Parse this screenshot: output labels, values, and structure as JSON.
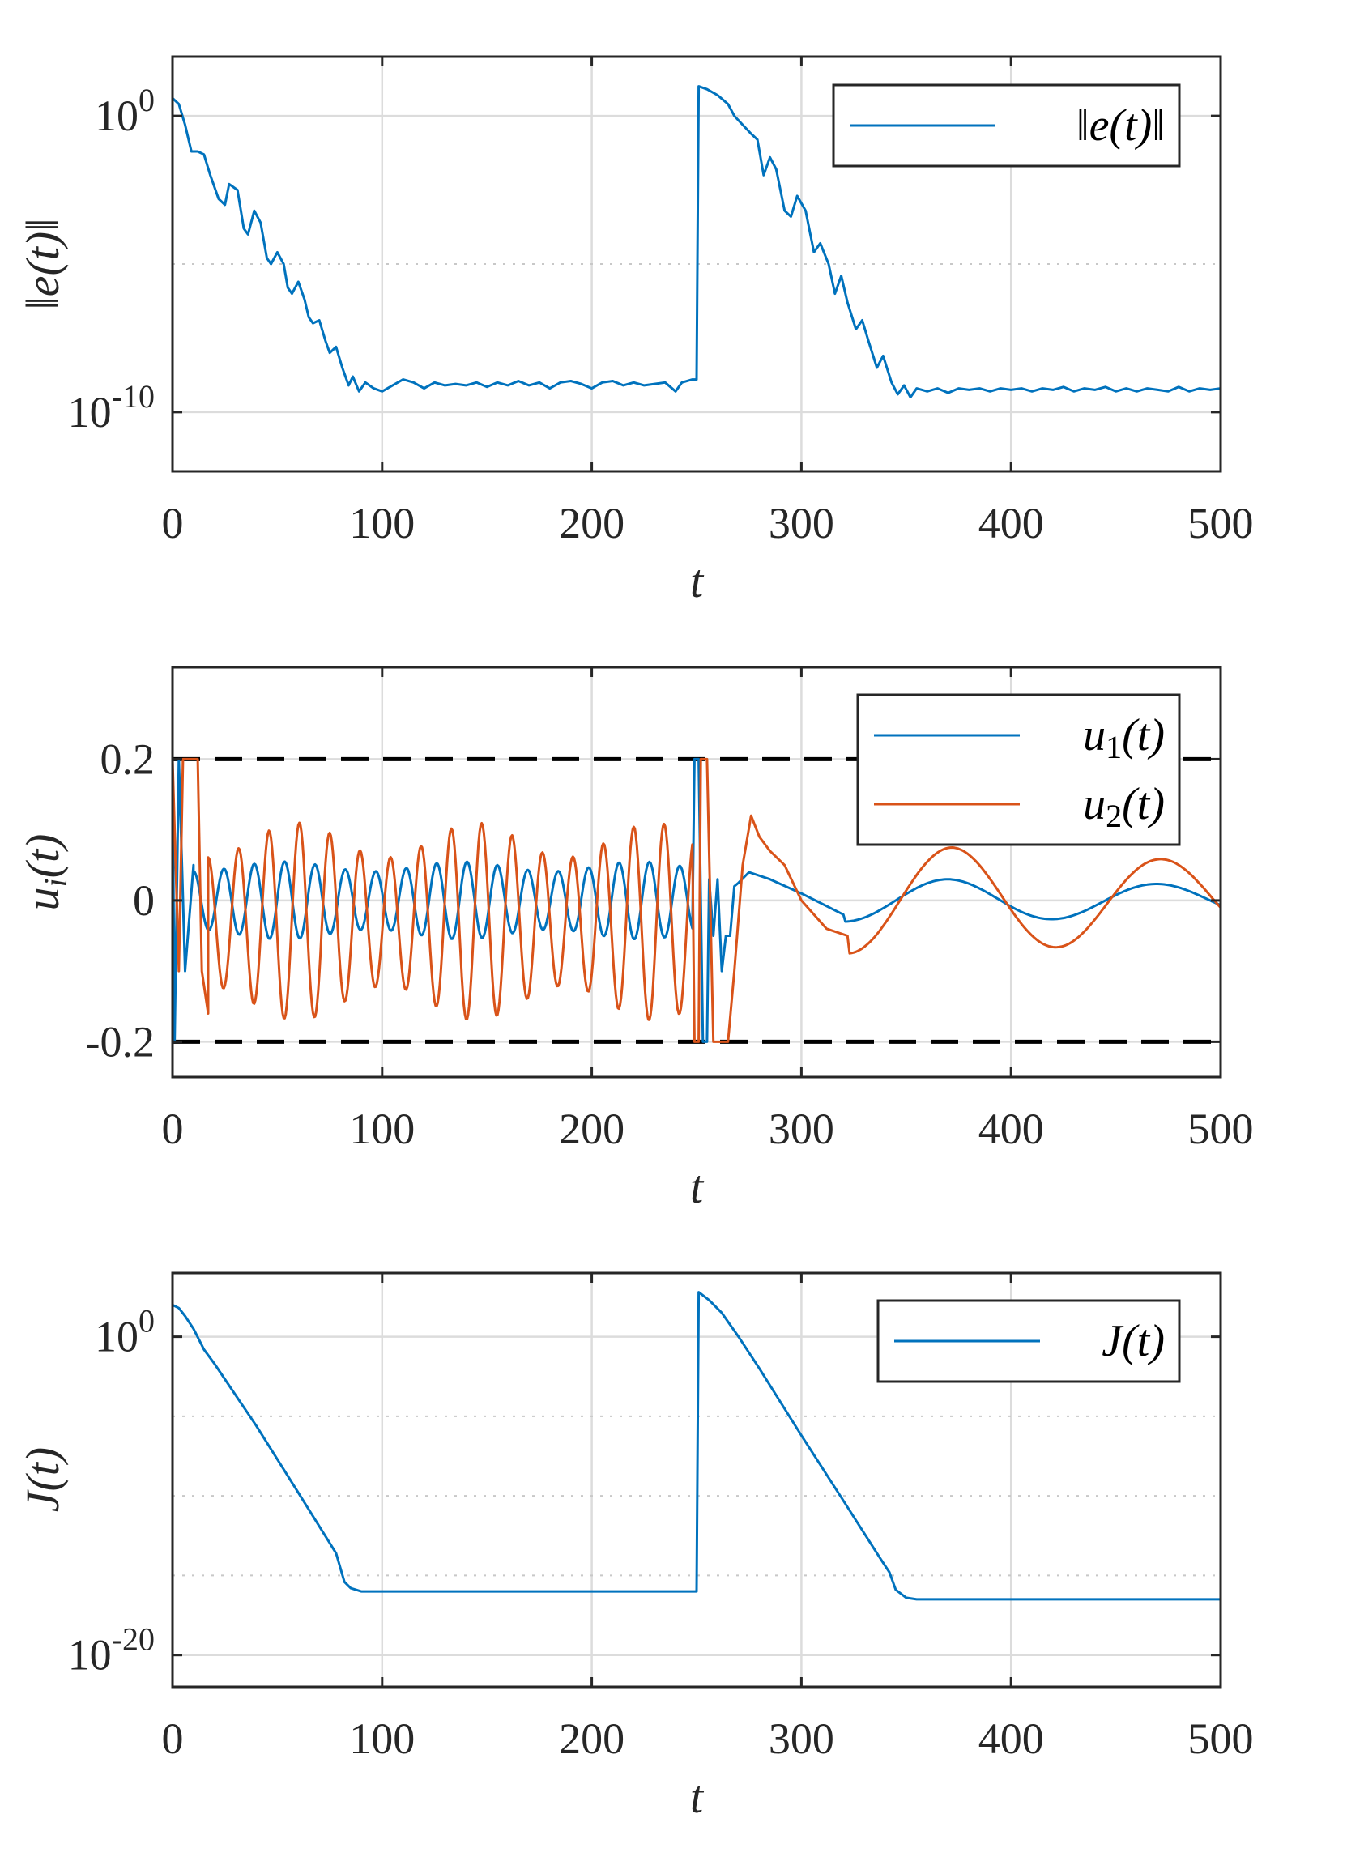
{
  "colors": {
    "series_1": "#0072BD",
    "series_2": "#D95319",
    "bound": "#000000"
  },
  "chart_data": [
    {
      "type": "line",
      "yscale": "log",
      "xlabel": "t",
      "ylabel": "‖e(t)‖",
      "xlim": [
        0,
        500
      ],
      "ylim_exp": [
        -12,
        2
      ],
      "xticks": [
        0,
        100,
        200,
        300,
        400,
        500
      ],
      "xtick_labels": [
        "0",
        "100",
        "200",
        "300",
        "400",
        "500"
      ],
      "yticks": [
        {
          "base": "10",
          "exp": "0",
          "value_exp": 0
        },
        {
          "base": "10",
          "exp": "-10",
          "value_exp": -10
        }
      ],
      "minor_grid_exp": [
        -5
      ],
      "legend": [
        {
          "label": "‖e(t)‖",
          "color": "series_1"
        }
      ],
      "legend_position": "top-right",
      "series": [
        {
          "name": "‖e(t)‖",
          "color": "series_1",
          "log10_values": [
            [
              0,
              0.6
            ],
            [
              3,
              0.4
            ],
            [
              6,
              -0.3
            ],
            [
              9,
              -1.2
            ],
            [
              12,
              -1.2
            ],
            [
              15,
              -1.3
            ],
            [
              18,
              -2.0
            ],
            [
              22,
              -2.8
            ],
            [
              25,
              -3.0
            ],
            [
              27,
              -2.3
            ],
            [
              31,
              -2.5
            ],
            [
              34,
              -3.8
            ],
            [
              36,
              -4.0
            ],
            [
              39,
              -3.2
            ],
            [
              42,
              -3.6
            ],
            [
              45,
              -4.8
            ],
            [
              47,
              -5.0
            ],
            [
              50,
              -4.6
            ],
            [
              53,
              -5.0
            ],
            [
              55,
              -5.8
            ],
            [
              57,
              -6.0
            ],
            [
              60,
              -5.6
            ],
            [
              63,
              -6.2
            ],
            [
              65,
              -6.8
            ],
            [
              67,
              -7.0
            ],
            [
              70,
              -6.9
            ],
            [
              73,
              -7.6
            ],
            [
              75,
              -8.0
            ],
            [
              78,
              -7.8
            ],
            [
              81,
              -8.5
            ],
            [
              84,
              -9.1
            ],
            [
              86,
              -8.8
            ],
            [
              89,
              -9.3
            ],
            [
              92,
              -9.0
            ],
            [
              96,
              -9.2
            ],
            [
              100,
              -9.3
            ],
            [
              105,
              -9.1
            ],
            [
              110,
              -8.9
            ],
            [
              115,
              -9.0
            ],
            [
              120,
              -9.2
            ],
            [
              125,
              -9.0
            ],
            [
              130,
              -9.1
            ],
            [
              135,
              -9.05
            ],
            [
              140,
              -9.1
            ],
            [
              145,
              -9.0
            ],
            [
              150,
              -9.15
            ],
            [
              155,
              -9.0
            ],
            [
              160,
              -9.1
            ],
            [
              165,
              -8.95
            ],
            [
              170,
              -9.1
            ],
            [
              175,
              -9.0
            ],
            [
              180,
              -9.2
            ],
            [
              185,
              -9.0
            ],
            [
              190,
              -8.95
            ],
            [
              195,
              -9.05
            ],
            [
              200,
              -9.2
            ],
            [
              205,
              -9.0
            ],
            [
              210,
              -8.95
            ],
            [
              215,
              -9.1
            ],
            [
              220,
              -9.0
            ],
            [
              225,
              -9.1
            ],
            [
              230,
              -9.05
            ],
            [
              235,
              -9.0
            ],
            [
              240,
              -9.3
            ],
            [
              243,
              -9.0
            ],
            [
              248,
              -8.9
            ],
            [
              250,
              -8.9
            ],
            [
              251,
              1.0
            ],
            [
              255,
              0.9
            ],
            [
              260,
              0.7
            ],
            [
              265,
              0.4
            ],
            [
              268,
              0.0
            ],
            [
              272,
              -0.3
            ],
            [
              276,
              -0.6
            ],
            [
              279,
              -0.8
            ],
            [
              282,
              -2.0
            ],
            [
              285,
              -1.4
            ],
            [
              288,
              -1.8
            ],
            [
              292,
              -3.2
            ],
            [
              295,
              -3.4
            ],
            [
              298,
              -2.7
            ],
            [
              302,
              -3.2
            ],
            [
              306,
              -4.6
            ],
            [
              309,
              -4.3
            ],
            [
              313,
              -5.0
            ],
            [
              316,
              -6.0
            ],
            [
              319,
              -5.4
            ],
            [
              322,
              -6.3
            ],
            [
              326,
              -7.2
            ],
            [
              329,
              -6.9
            ],
            [
              332,
              -7.6
            ],
            [
              336,
              -8.5
            ],
            [
              339,
              -8.1
            ],
            [
              343,
              -9.0
            ],
            [
              346,
              -9.4
            ],
            [
              349,
              -9.1
            ],
            [
              352,
              -9.5
            ],
            [
              355,
              -9.2
            ],
            [
              360,
              -9.3
            ],
            [
              365,
              -9.2
            ],
            [
              370,
              -9.35
            ],
            [
              375,
              -9.2
            ],
            [
              380,
              -9.25
            ],
            [
              385,
              -9.2
            ],
            [
              390,
              -9.3
            ],
            [
              395,
              -9.2
            ],
            [
              400,
              -9.25
            ],
            [
              405,
              -9.2
            ],
            [
              410,
              -9.3
            ],
            [
              415,
              -9.2
            ],
            [
              420,
              -9.25
            ],
            [
              425,
              -9.15
            ],
            [
              430,
              -9.3
            ],
            [
              435,
              -9.2
            ],
            [
              440,
              -9.25
            ],
            [
              445,
              -9.15
            ],
            [
              450,
              -9.3
            ],
            [
              455,
              -9.2
            ],
            [
              460,
              -9.3
            ],
            [
              465,
              -9.2
            ],
            [
              470,
              -9.25
            ],
            [
              475,
              -9.3
            ],
            [
              480,
              -9.15
            ],
            [
              485,
              -9.3
            ],
            [
              490,
              -9.2
            ],
            [
              495,
              -9.25
            ],
            [
              500,
              -9.2
            ]
          ]
        }
      ]
    },
    {
      "type": "line",
      "yscale": "linear",
      "xlabel": "t",
      "ylabel": "u_i(t)",
      "xlim": [
        0,
        500
      ],
      "ylim": [
        -0.25,
        0.33
      ],
      "xticks": [
        0,
        100,
        200,
        300,
        400,
        500
      ],
      "xtick_labels": [
        "0",
        "100",
        "200",
        "300",
        "400",
        "500"
      ],
      "yticks": [
        0.2,
        0,
        -0.2
      ],
      "ytick_labels": [
        "0.2",
        "0",
        "-0.2"
      ],
      "bounds": [
        0.2,
        -0.2
      ],
      "legend": [
        {
          "label": "u1(t)",
          "color": "series_1"
        },
        {
          "label": "u2(t)",
          "color": "series_2"
        }
      ],
      "legend_position": "top-right",
      "series": [
        {
          "name": "u1(t)",
          "color": "series_1",
          "model": {
            "start": [
              [
                0,
                0.2
              ],
              [
                1,
                -0.2
              ],
              [
                3,
                0.2
              ],
              [
                6,
                -0.1
              ],
              [
                10,
                0.05
              ]
            ],
            "oscillation": {
              "from": 10,
              "to": 248,
              "period": 14.5,
              "amplitude": 0.055,
              "beat_period": 85,
              "beat_depth": 0.25,
              "offset": 0.0
            },
            "transient": [
              [
                249,
                0.2
              ],
              [
                251,
                0.2
              ],
              [
                253,
                -0.2
              ],
              [
                255,
                -0.2
              ],
              [
                256,
                0.03
              ],
              [
                258,
                -0.05
              ],
              [
                260,
                0.03
              ],
              [
                262,
                -0.1
              ],
              [
                264,
                -0.05
              ],
              [
                266,
                -0.05
              ],
              [
                268,
                0.02
              ],
              [
                270,
                0.025
              ],
              [
                275,
                0.04
              ],
              [
                285,
                0.03
              ],
              [
                300,
                0.01
              ],
              [
                320,
                -0.02
              ]
            ],
            "decay": {
              "from": 320,
              "to": 500,
              "period": 100,
              "amplitude": 0.03,
              "peak_t": 370,
              "decay_rate": 0.0025
            }
          }
        },
        {
          "name": "u2(t)",
          "color": "series_2",
          "model": {
            "start": [
              [
                0,
                0.2
              ],
              [
                3,
                -0.1
              ],
              [
                5,
                0.2
              ],
              [
                9,
                0.2
              ],
              [
                12,
                0.2
              ],
              [
                14,
                -0.1
              ],
              [
                17,
                -0.16
              ]
            ],
            "oscillation": {
              "from": 17,
              "to": 248,
              "period": 14.5,
              "amplitude": 0.14,
              "beat_period": 85,
              "beat_depth": 0.35,
              "offset": -0.03
            },
            "transient": [
              [
                249,
                -0.2
              ],
              [
                251,
                -0.2
              ],
              [
                252,
                0.2
              ],
              [
                255,
                0.2
              ],
              [
                258,
                -0.2
              ],
              [
                265,
                -0.2
              ],
              [
                268,
                -0.1
              ],
              [
                272,
                0.05
              ],
              [
                276,
                0.12
              ],
              [
                280,
                0.09
              ],
              [
                285,
                0.07
              ],
              [
                292,
                0.05
              ],
              [
                300,
                0.0
              ],
              [
                312,
                -0.04
              ],
              [
                322,
                -0.05
              ]
            ],
            "decay": {
              "from": 322,
              "to": 500,
              "period": 100,
              "amplitude": 0.075,
              "peak_t": 372,
              "decay_rate": 0.0025
            }
          }
        }
      ]
    },
    {
      "type": "line",
      "yscale": "log",
      "xlabel": "t",
      "ylabel": "J(t)",
      "xlim": [
        0,
        500
      ],
      "ylim_exp": [
        -22,
        4
      ],
      "xticks": [
        0,
        100,
        200,
        300,
        400,
        500
      ],
      "xtick_labels": [
        "0",
        "100",
        "200",
        "300",
        "400",
        "500"
      ],
      "yticks": [
        {
          "base": "10",
          "exp": "0",
          "value_exp": 0
        },
        {
          "base": "10",
          "exp": "-20",
          "value_exp": -20
        }
      ],
      "minor_grid_exp": [
        -5,
        -10,
        -15
      ],
      "legend": [
        {
          "label": "J(t)",
          "color": "series_1"
        }
      ],
      "legend_position": "top-right",
      "series": [
        {
          "name": "J(t)",
          "color": "series_1",
          "log10_values": [
            [
              0,
              2.0
            ],
            [
              3,
              1.8
            ],
            [
              6,
              1.3
            ],
            [
              10,
              0.5
            ],
            [
              15,
              -0.8
            ],
            [
              20,
              -1.7
            ],
            [
              40,
              -5.6
            ],
            [
              60,
              -9.8
            ],
            [
              78,
              -13.6
            ],
            [
              82,
              -15.4
            ],
            [
              85,
              -15.8
            ],
            [
              90,
              -16.0
            ],
            [
              100,
              -16.0
            ],
            [
              150,
              -16.0
            ],
            [
              200,
              -16.0
            ],
            [
              250,
              -16.0
            ],
            [
              251,
              2.8
            ],
            [
              256,
              2.3
            ],
            [
              262,
              1.5
            ],
            [
              270,
              0.0
            ],
            [
              280,
              -2.0
            ],
            [
              300,
              -6.2
            ],
            [
              320,
              -10.3
            ],
            [
              338,
              -14.0
            ],
            [
              342,
              -14.8
            ],
            [
              345,
              -15.9
            ],
            [
              350,
              -16.4
            ],
            [
              355,
              -16.5
            ],
            [
              400,
              -16.5
            ],
            [
              450,
              -16.5
            ],
            [
              500,
              -16.5
            ]
          ]
        }
      ]
    }
  ]
}
